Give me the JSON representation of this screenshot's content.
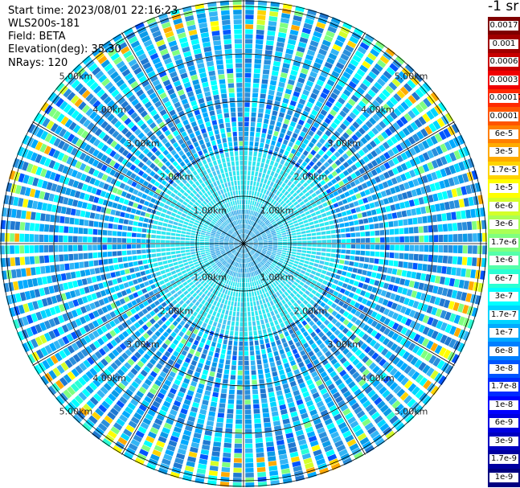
{
  "header": {
    "start_time": "Start time: 2023/08/01 22:16:23",
    "instrument": "WLS200s-181",
    "field": "Field: BETA",
    "elevation": "Elevation(deg): 35.30",
    "nrays": "NRays: 120"
  },
  "colorbar": {
    "unit_label": "-1 sr",
    "labels": [
      "0.0017",
      "0.001",
      "0.0006",
      "0.0003",
      "0.00017",
      "0.0001",
      "6e-5",
      "3e-5",
      "1.7e-5",
      "1e-5",
      "6e-6",
      "3e-6",
      "1.7e-6",
      "1e-6",
      "6e-7",
      "3e-7",
      "1.7e-7",
      "1e-7",
      "6e-8",
      "3e-8",
      "1.7e-8",
      "1e-8",
      "6e-9",
      "3e-9",
      "1.7e-9",
      "1e-9"
    ],
    "colors": [
      "#7f0000",
      "#a00000",
      "#c80000",
      "#f00000",
      "#ff2a00",
      "#ff5500",
      "#ff7f00",
      "#ffaa00",
      "#ffd400",
      "#ffff00",
      "#d4ff2a",
      "#aaff55",
      "#7fff7f",
      "#55ffaa",
      "#2affd4",
      "#00ffff",
      "#00d4ff",
      "#00aaff",
      "#007fff",
      "#0055ff",
      "#002aff",
      "#0000ff",
      "#0000e0",
      "#0000c0",
      "#0000a0",
      "#000080"
    ]
  },
  "range_rings": {
    "labels": [
      "1.00km",
      "2.00km",
      "3.00km",
      "4.00km",
      "5.00km"
    ]
  }
}
